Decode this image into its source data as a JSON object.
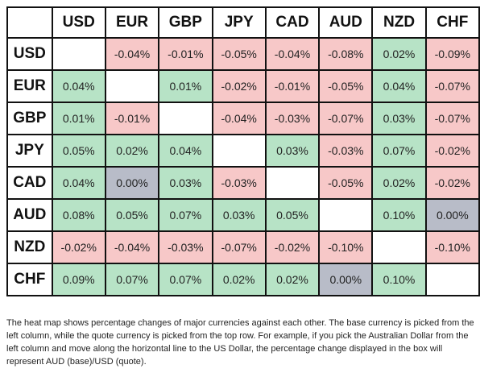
{
  "heatmap": {
    "columns": [
      "USD",
      "EUR",
      "GBP",
      "JPY",
      "CAD",
      "AUD",
      "NZD",
      "CHF"
    ],
    "rows": [
      {
        "label": "USD",
        "cells": [
          "",
          "-0.04%",
          "-0.01%",
          "-0.05%",
          "-0.04%",
          "-0.08%",
          "0.02%",
          "-0.09%"
        ]
      },
      {
        "label": "EUR",
        "cells": [
          "0.04%",
          "",
          "0.01%",
          "-0.02%",
          "-0.01%",
          "-0.05%",
          "0.04%",
          "-0.07%"
        ]
      },
      {
        "label": "GBP",
        "cells": [
          "0.01%",
          "-0.01%",
          "",
          "-0.04%",
          "-0.03%",
          "-0.07%",
          "0.03%",
          "-0.07%"
        ]
      },
      {
        "label": "JPY",
        "cells": [
          "0.05%",
          "0.02%",
          "0.04%",
          "",
          "0.03%",
          "-0.03%",
          "0.07%",
          "-0.02%"
        ]
      },
      {
        "label": "CAD",
        "cells": [
          "0.04%",
          "0.00%",
          "0.03%",
          "-0.03%",
          "",
          "-0.05%",
          "0.02%",
          "-0.02%"
        ]
      },
      {
        "label": "AUD",
        "cells": [
          "0.08%",
          "0.05%",
          "0.07%",
          "0.03%",
          "0.05%",
          "",
          "0.10%",
          "0.00%"
        ]
      },
      {
        "label": "NZD",
        "cells": [
          "-0.02%",
          "-0.04%",
          "-0.03%",
          "-0.07%",
          "-0.02%",
          "-0.10%",
          "",
          "-0.10%"
        ]
      },
      {
        "label": "CHF",
        "cells": [
          "0.09%",
          "0.07%",
          "0.07%",
          "0.02%",
          "0.02%",
          "0.00%",
          "0.10%",
          ""
        ]
      }
    ],
    "colors": {
      "positive": "#b7e3c6",
      "negative": "#f7c8c8",
      "zero": "#b8bcc8",
      "empty": "#ffffff"
    }
  },
  "description": "The heat map shows percentage changes of major currencies against each other. The base currency is picked from the left column, while the quote currency is picked from the top row. For example, if you pick the Australian Dollar from the left column and move along the horizontal line to the US Dollar, the percentage change displayed in the box will represent AUD (base)/USD (quote)."
}
